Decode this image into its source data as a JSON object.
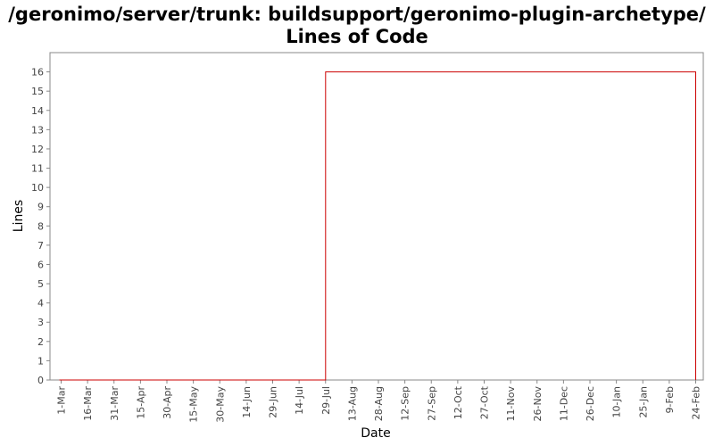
{
  "chart_data": {
    "type": "line",
    "title": "/geronimo/server/trunk: buildsupport/geronimo-plugin-archetype/ Lines of Code",
    "xlabel": "Date",
    "ylabel": "Lines",
    "x_ticks": [
      "1-Mar",
      "16-Mar",
      "31-Mar",
      "15-Apr",
      "30-Apr",
      "15-May",
      "30-May",
      "14-Jun",
      "29-Jun",
      "14-Jul",
      "29-Jul",
      "13-Aug",
      "28-Aug",
      "12-Sep",
      "27-Sep",
      "12-Oct",
      "27-Oct",
      "11-Nov",
      "26-Nov",
      "11-Dec",
      "26-Dec",
      "10-Jan",
      "25-Jan",
      "9-Feb",
      "24-Feb"
    ],
    "y_ticks": [
      0,
      1,
      2,
      3,
      4,
      5,
      6,
      7,
      8,
      9,
      10,
      11,
      12,
      13,
      14,
      15,
      16
    ],
    "xlim": [
      "28-Feb",
      "28-Feb"
    ],
    "ylim": [
      0,
      17
    ],
    "grid": false,
    "legend": "none",
    "series": [
      {
        "color": "#cc0000",
        "x": [
          "28-Feb",
          "29-Jul",
          "29-Jul",
          "24-Feb",
          "24-Feb"
        ],
        "y": [
          0,
          0,
          16,
          16,
          0
        ]
      }
    ]
  }
}
